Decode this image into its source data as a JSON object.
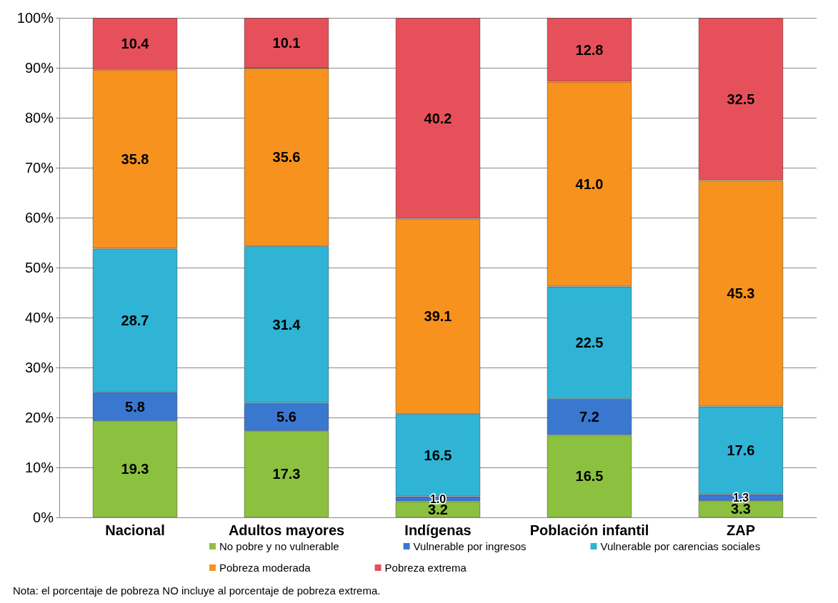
{
  "chart_data": {
    "type": "bar",
    "stacked": true,
    "categories": [
      "Nacional",
      "Adultos mayores",
      "Indígenas",
      "Población infantil",
      "ZAP"
    ],
    "series": [
      {
        "name": "No pobre y no vulnerable",
        "color": "#8cc13f",
        "values": [
          19.3,
          17.3,
          3.2,
          16.5,
          3.3
        ],
        "value_labels": [
          "19.3",
          "17.3",
          "3.2",
          "16.5",
          "3.3"
        ]
      },
      {
        "name": "Vulnerable por ingresos",
        "color": "#3a78d0",
        "values": [
          5.8,
          5.6,
          1.0,
          7.2,
          1.3
        ],
        "value_labels": [
          "5.8",
          "5.6",
          "1.0",
          "7.2",
          "1.3"
        ]
      },
      {
        "name": "Vulnerable por carencias sociales",
        "color": "#2fb4d6",
        "values": [
          28.7,
          31.4,
          16.5,
          22.5,
          17.6
        ],
        "value_labels": [
          "28.7",
          "31.4",
          "16.5",
          "22.5",
          "17.6"
        ]
      },
      {
        "name": "Pobreza moderada",
        "color": "#f7921f",
        "values": [
          35.8,
          35.6,
          39.1,
          41.0,
          45.3
        ],
        "value_labels": [
          "35.8",
          "35.6",
          "39.1",
          "41.0",
          "45.3"
        ]
      },
      {
        "name": "Pobreza extrema",
        "color": "#e6505a",
        "values": [
          10.4,
          10.1,
          40.2,
          12.8,
          32.5
        ],
        "value_labels": [
          "10.4",
          "10.1",
          "40.2",
          "12.8",
          "32.5"
        ]
      }
    ],
    "ylim": [
      0,
      100
    ],
    "yticks": [
      {
        "value": 0,
        "label": "0%"
      },
      {
        "value": 10,
        "label": "10%"
      },
      {
        "value": 20,
        "label": "20%"
      },
      {
        "value": 30,
        "label": "30%"
      },
      {
        "value": 40,
        "label": "40%"
      },
      {
        "value": 50,
        "label": "50%"
      },
      {
        "value": 60,
        "label": "60%"
      },
      {
        "value": 70,
        "label": "70%"
      },
      {
        "value": 80,
        "label": "80%"
      },
      {
        "value": 90,
        "label": "90%"
      },
      {
        "value": 100,
        "label": "100%"
      }
    ],
    "grid": "y",
    "legend": "bottom",
    "annotations": [
      "Nota: el porcentaje de pobreza NO incluye al porcentaje de pobreza extrema."
    ]
  }
}
